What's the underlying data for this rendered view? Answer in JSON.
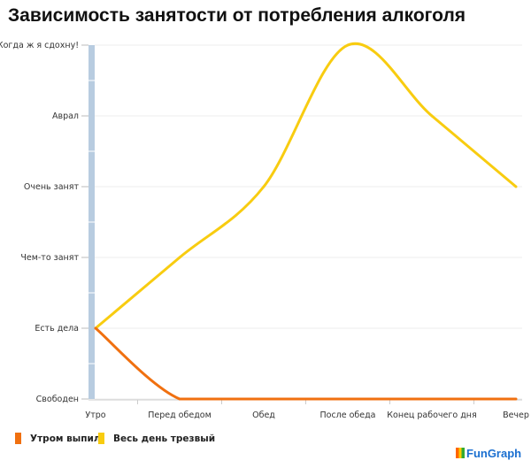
{
  "chart_data": {
    "type": "line",
    "title": "Зависимость занятости от потребления алкоголя",
    "xlabel": "",
    "ylabel": "",
    "categories": [
      "Утро",
      "Перед обедом",
      "Обед",
      "После обеда",
      "Конец рабочего дня",
      "Вечер"
    ],
    "y_tick_labels": [
      "Свободен",
      "Есть дела",
      "Чем-то занят",
      "Очень занят",
      "Аврал",
      "Когда ж я сдохну!"
    ],
    "ylim": [
      0,
      5
    ],
    "grid": true,
    "legend_position": "bottom-left",
    "series": [
      {
        "name": "Утром выпил",
        "color": "#f07010",
        "values": [
          1,
          0,
          0,
          0,
          0,
          0
        ]
      },
      {
        "name": "Весь день трезвый",
        "color": "#f8cc10",
        "values": [
          1,
          2,
          3,
          5,
          4,
          3
        ]
      }
    ]
  },
  "branding": "FunGraph"
}
